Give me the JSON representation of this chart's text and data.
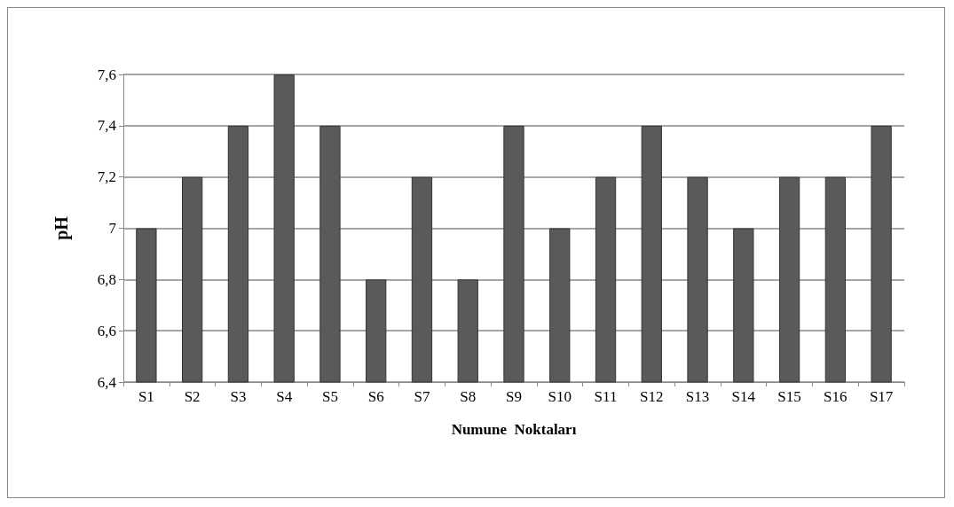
{
  "chart_data": {
    "type": "bar",
    "xlabel": "Numune  Noktaları",
    "ylabel": "pH",
    "categories": [
      "S1",
      "S2",
      "S3",
      "S4",
      "S5",
      "S6",
      "S7",
      "S8",
      "S9",
      "S10",
      "S11",
      "S12",
      "S13",
      "S14",
      "S15",
      "S16",
      "S17"
    ],
    "values": [
      7.0,
      7.2,
      7.4,
      7.6,
      7.4,
      6.8,
      7.2,
      6.8,
      7.4,
      7.0,
      7.2,
      7.4,
      7.2,
      7.0,
      7.2,
      7.2,
      7.4
    ],
    "color": "#5a5a5a",
    "ylim": [
      6.4,
      7.6
    ],
    "yticks": [
      {
        "value": 6.4,
        "label": "6,4"
      },
      {
        "value": 6.6,
        "label": "6,6"
      },
      {
        "value": 6.8,
        "label": "6,8"
      },
      7,
      {
        "value": 7.2,
        "label": "7,2"
      },
      {
        "value": 7.4,
        "label": "7,4"
      },
      {
        "value": 7.6,
        "label": "7,6"
      }
    ],
    "grid": "y"
  }
}
